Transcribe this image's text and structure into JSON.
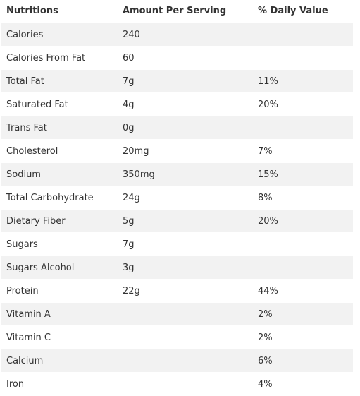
{
  "headers": {
    "nutrition": "Nutritions",
    "amount": "Amount Per Serving",
    "daily_value": "% Daily Value"
  },
  "rows": [
    {
      "name": "Calories",
      "amount": "240",
      "dv": ""
    },
    {
      "name": "Calories From Fat",
      "amount": "60",
      "dv": ""
    },
    {
      "name": "Total Fat",
      "amount": "7g",
      "dv": "11%"
    },
    {
      "name": "Saturated Fat",
      "amount": "4g",
      "dv": "20%"
    },
    {
      "name": "Trans Fat",
      "amount": "0g",
      "dv": ""
    },
    {
      "name": "Cholesterol",
      "amount": "20mg",
      "dv": "7%"
    },
    {
      "name": "Sodium",
      "amount": "350mg",
      "dv": "15%"
    },
    {
      "name": "Total Carbohydrate",
      "amount": "24g",
      "dv": "8%"
    },
    {
      "name": "Dietary Fiber",
      "amount": "5g",
      "dv": "20%"
    },
    {
      "name": "Sugars",
      "amount": "7g",
      "dv": ""
    },
    {
      "name": "Sugars Alcohol",
      "amount": "3g",
      "dv": ""
    },
    {
      "name": "Protein",
      "amount": "22g",
      "dv": "44%"
    },
    {
      "name": "Vitamin A",
      "amount": "",
      "dv": "2%"
    },
    {
      "name": "Vitamin C",
      "amount": "",
      "dv": "2%"
    },
    {
      "name": "Calcium",
      "amount": "",
      "dv": "6%"
    },
    {
      "name": "Iron",
      "amount": "",
      "dv": "4%"
    }
  ]
}
